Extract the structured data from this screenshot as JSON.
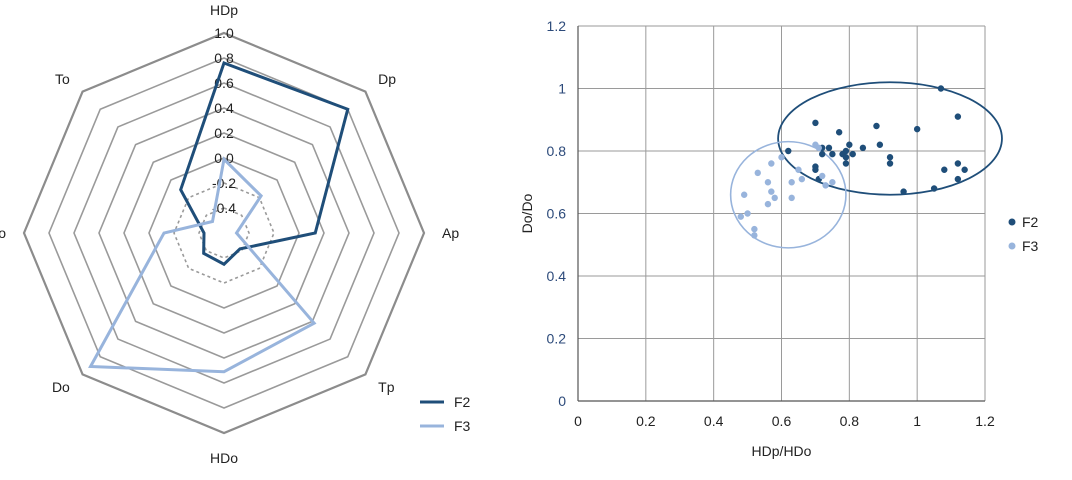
{
  "chart_data": [
    {
      "type": "radar",
      "axes": [
        "HDp",
        "Dp",
        "Ap",
        "Tp",
        "HDo",
        "Do",
        "Ao",
        "To"
      ],
      "radial_ticks": [
        "1.0",
        "0.8",
        "0.6",
        "0.4",
        "0.2",
        "0.0",
        "-0.2",
        "-0.4"
      ],
      "rlim": [
        -0.6,
        1.0
      ],
      "series": [
        {
          "name": "F2",
          "color": "#1f4e79",
          "values": [
            0.76,
            0.8,
            0.13,
            -0.42,
            -0.35,
            -0.37,
            -0.44,
            -0.11
          ]
        },
        {
          "name": "F3",
          "color": "#98b4dc",
          "values": [
            -0.01,
            -0.18,
            -0.5,
            0.42,
            0.51,
            0.91,
            -0.12,
            -0.47
          ]
        }
      ],
      "legend": {
        "placement": "bottom-right",
        "items": [
          "F2",
          "F3"
        ]
      }
    },
    {
      "type": "scatter",
      "xlabel": "HDp/HDo",
      "ylabel": "Do/Do",
      "xlim": [
        0,
        1.2
      ],
      "ylim": [
        0,
        1.2
      ],
      "x_ticks": [
        "0",
        "0.2",
        "0.4",
        "0.6",
        "0.8",
        "1",
        "1.2"
      ],
      "y_ticks": [
        "0",
        "0.2",
        "0.4",
        "0.6",
        "0.8",
        "1",
        "1.2"
      ],
      "grid": true,
      "legend": {
        "placement": "right",
        "items": [
          "F2",
          "F3"
        ]
      },
      "series": [
        {
          "name": "F2",
          "color": "#1f4e79",
          "points": [
            [
              0.62,
              0.8
            ],
            [
              0.7,
              0.89
            ],
            [
              0.7,
              0.75
            ],
            [
              0.7,
              0.74
            ],
            [
              0.71,
              0.71
            ],
            [
              0.72,
              0.81
            ],
            [
              0.72,
              0.79
            ],
            [
              0.74,
              0.81
            ],
            [
              0.75,
              0.79
            ],
            [
              0.77,
              0.86
            ],
            [
              0.78,
              0.79
            ],
            [
              0.79,
              0.8
            ],
            [
              0.79,
              0.76
            ],
            [
              0.79,
              0.78
            ],
            [
              0.8,
              0.82
            ],
            [
              0.81,
              0.79
            ],
            [
              0.84,
              0.81
            ],
            [
              0.88,
              0.88
            ],
            [
              0.89,
              0.82
            ],
            [
              0.92,
              0.78
            ],
            [
              0.92,
              0.76
            ],
            [
              0.96,
              0.67
            ],
            [
              1.0,
              0.87
            ],
            [
              1.05,
              0.68
            ],
            [
              1.07,
              1.0
            ],
            [
              1.08,
              0.74
            ],
            [
              1.12,
              0.91
            ],
            [
              1.12,
              0.76
            ],
            [
              1.12,
              0.71
            ],
            [
              1.14,
              0.74
            ]
          ]
        },
        {
          "name": "F3",
          "color": "#98b4dc",
          "points": [
            [
              0.48,
              0.59
            ],
            [
              0.49,
              0.66
            ],
            [
              0.5,
              0.6
            ],
            [
              0.52,
              0.55
            ],
            [
              0.52,
              0.53
            ],
            [
              0.53,
              0.73
            ],
            [
              0.56,
              0.7
            ],
            [
              0.56,
              0.63
            ],
            [
              0.57,
              0.76
            ],
            [
              0.57,
              0.67
            ],
            [
              0.58,
              0.65
            ],
            [
              0.6,
              0.78
            ],
            [
              0.63,
              0.7
            ],
            [
              0.63,
              0.65
            ],
            [
              0.65,
              0.74
            ],
            [
              0.66,
              0.71
            ],
            [
              0.7,
              0.82
            ],
            [
              0.71,
              0.81
            ],
            [
              0.72,
              0.72
            ],
            [
              0.73,
              0.69
            ],
            [
              0.75,
              0.7
            ]
          ]
        }
      ],
      "ellipses": [
        {
          "series": "F2",
          "cx": 0.92,
          "cy": 0.84,
          "rx": 0.33,
          "ry": 0.18
        },
        {
          "series": "F3",
          "cx": 0.62,
          "cy": 0.66,
          "rx": 0.17,
          "ry": 0.17
        }
      ]
    }
  ]
}
